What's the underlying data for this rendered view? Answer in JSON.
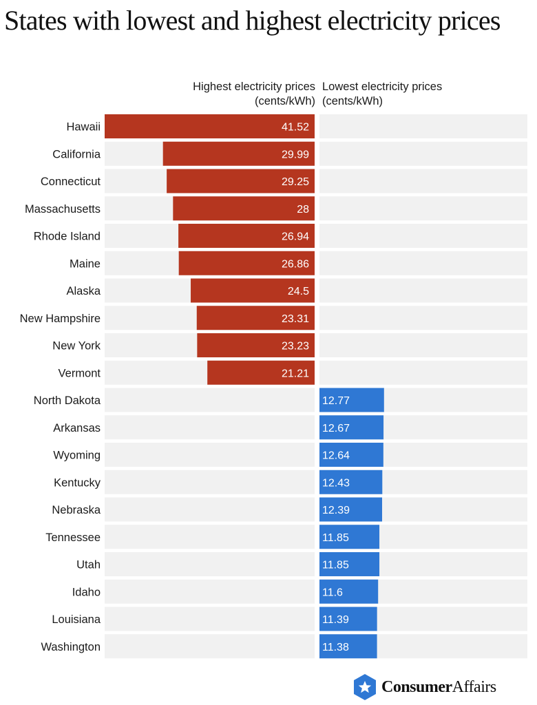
{
  "title": "States with lowest and highest electricity prices",
  "headers": {
    "high_line1": "Highest electricity prices",
    "high_line2": "(cents/kWh)",
    "low_line1": "Lowest electricity prices",
    "low_line2": "(cents/kWh)"
  },
  "brand": {
    "bold": "Consumer",
    "regular": "Affairs"
  },
  "colors": {
    "high": "#b5361f",
    "low": "#2f78d4",
    "track": "#f1f1f1"
  },
  "chart_data": {
    "type": "bar",
    "title": "States with lowest and highest electricity prices",
    "unit": "cents/kWh",
    "series": [
      {
        "name": "Highest electricity prices (cents/kWh)",
        "categories": [
          "Hawaii",
          "California",
          "Connecticut",
          "Massachusetts",
          "Rhode Island",
          "Maine",
          "Alaska",
          "New Hampshire",
          "New York",
          "Vermont"
        ],
        "values": [
          41.52,
          29.99,
          29.25,
          28,
          26.94,
          26.86,
          24.5,
          23.31,
          23.23,
          21.21
        ],
        "labels": [
          "41.52",
          "29.99",
          "29.25",
          "28",
          "26.94",
          "26.86",
          "24.5",
          "23.31",
          "23.23",
          "21.21"
        ]
      },
      {
        "name": "Lowest electricity prices (cents/kWh)",
        "categories": [
          "North Dakota",
          "Arkansas",
          "Wyoming",
          "Kentucky",
          "Nebraska",
          "Tennessee",
          "Utah",
          "Idaho",
          "Louisiana",
          "Washington"
        ],
        "values": [
          12.77,
          12.67,
          12.64,
          12.43,
          12.39,
          11.85,
          11.85,
          11.6,
          11.39,
          11.38
        ],
        "labels": [
          "12.77",
          "12.67",
          "12.64",
          "12.43",
          "12.39",
          "11.85",
          "11.85",
          "11.6",
          "11.39",
          "11.38"
        ]
      }
    ],
    "xlim": [
      0,
      41.52
    ]
  }
}
